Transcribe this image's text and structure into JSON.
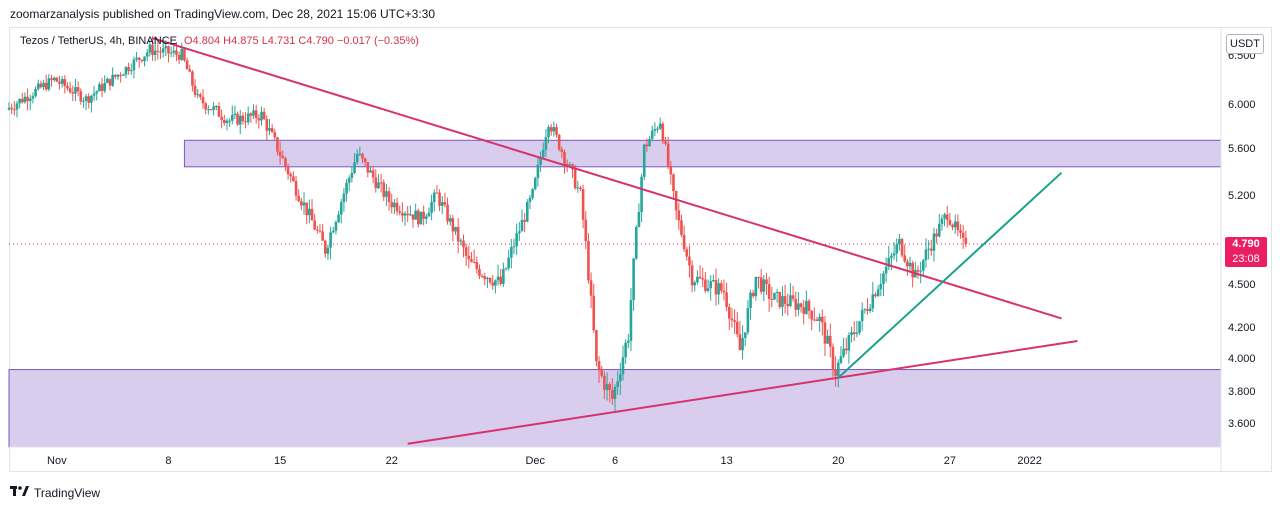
{
  "publisher_line": "zoomarzanalysis published on TradingView.com, Dec 28, 2021 15:06 UTC+3:30",
  "legend": {
    "symbol": "Tezos / TetherUS, 4h, BINANCE",
    "open": "O4.804",
    "high": "H4.875",
    "low": "L4.731",
    "close": "C4.790",
    "change": "−0.017 (−0.35%)"
  },
  "currency_button": "USDT",
  "last_price": {
    "price": "4.790",
    "countdown": "23:08"
  },
  "footer": {
    "brand": "TradingView",
    "logo_icon": "tradingview-logo-icon"
  },
  "colors": {
    "up": "#26a69a",
    "down": "#ef5350",
    "trendline": "#d6336c",
    "support_line": "#17a38b",
    "zone_fill": "#d1c4e9",
    "zone_border": "#7e57c2",
    "price_line": "#e91e63"
  },
  "chart_data": {
    "type": "candlestick",
    "title": "",
    "xlabel": "",
    "ylabel": "",
    "y_ticks": [
      6.5,
      6.0,
      5.6,
      5.2,
      4.79,
      4.5,
      4.2,
      4.0,
      3.8,
      3.6
    ],
    "y_tick_labels": [
      "6.500",
      "6.000",
      "5.600",
      "5.200",
      "4.790",
      "4.500",
      "4.200",
      "4.000",
      "3.800",
      "3.600"
    ],
    "x_ticks": [
      "Nov",
      "8",
      "15",
      "22",
      "Dec",
      "6",
      "13",
      "20",
      "27",
      "2022"
    ],
    "x_range": [
      "2021-10-29",
      "2022-01-13"
    ],
    "y_range_approx": [
      3.45,
      6.62
    ],
    "last_close": 4.79,
    "zones": [
      {
        "name": "resistance",
        "from": "2021-11-09",
        "to": "2022-01-13",
        "low": 5.44,
        "high": 5.67
      },
      {
        "name": "support",
        "from": "2021-10-29",
        "to": "2022-01-13",
        "low": 3.45,
        "high": 3.93
      }
    ],
    "trendlines": [
      {
        "name": "descending",
        "start": [
          "2021-11-07",
          6.66
        ],
        "end": [
          "2022-01-03",
          4.26
        ],
        "color": "#d6336c"
      },
      {
        "name": "ascending-lower",
        "start": [
          "2021-11-23",
          3.47
        ],
        "end": [
          "2022-01-04",
          4.11
        ],
        "color": "#d6336c"
      },
      {
        "name": "ascending-support",
        "start": [
          "2021-12-20",
          3.88
        ],
        "end": [
          "2022-01-03",
          5.39
        ],
        "color": "#17a38b"
      }
    ],
    "path_points": [
      [
        "2021-10-29",
        5.95
      ],
      [
        "2021-11-01",
        6.25
      ],
      [
        "2021-11-03",
        6.05
      ],
      [
        "2021-11-05",
        6.3
      ],
      [
        "2021-11-07",
        6.55
      ],
      [
        "2021-11-09",
        6.5
      ],
      [
        "2021-11-10",
        6.05
      ],
      [
        "2021-11-12",
        5.85
      ],
      [
        "2021-11-14",
        5.9
      ],
      [
        "2021-11-16",
        5.3
      ],
      [
        "2021-11-18",
        4.75
      ],
      [
        "2021-11-20",
        5.55
      ],
      [
        "2021-11-22",
        5.15
      ],
      [
        "2021-11-24",
        5.0
      ],
      [
        "2021-11-25",
        5.2
      ],
      [
        "2021-11-27",
        4.65
      ],
      [
        "2021-11-29",
        4.5
      ],
      [
        "2021-12-01",
        5.2
      ],
      [
        "2021-12-02",
        5.85
      ],
      [
        "2021-12-04",
        5.2
      ],
      [
        "2021-12-04",
        5.2
      ],
      [
        "2021-12-05",
        3.95
      ],
      [
        "2021-12-06",
        3.75
      ],
      [
        "2021-12-07",
        4.15
      ],
      [
        "2021-12-08",
        5.6
      ],
      [
        "2021-12-09",
        5.85
      ],
      [
        "2021-12-10",
        5.05
      ],
      [
        "2021-12-11",
        4.55
      ],
      [
        "2021-12-13",
        4.45
      ],
      [
        "2021-12-14",
        4.05
      ],
      [
        "2021-12-15",
        4.55
      ],
      [
        "2021-12-16",
        4.4
      ],
      [
        "2021-12-18",
        4.35
      ],
      [
        "2021-12-19",
        4.25
      ],
      [
        "2021-12-20",
        3.92
      ],
      [
        "2021-12-22",
        4.35
      ],
      [
        "2021-12-24",
        4.8
      ],
      [
        "2021-12-25",
        4.55
      ],
      [
        "2021-12-27",
        5.05
      ],
      [
        "2021-12-28",
        4.79
      ]
    ]
  }
}
